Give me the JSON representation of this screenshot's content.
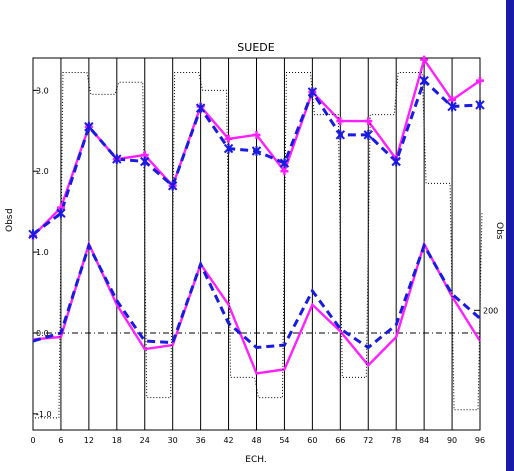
{
  "chart_data": {
    "type": "line",
    "title": "SUEDE",
    "xlabel": "ECH.",
    "ylabel_left_top": "Obs",
    "ylabel_left_prefix": "d",
    "ylabel_right": "Obs",
    "x": [
      0,
      6,
      12,
      18,
      24,
      30,
      36,
      42,
      48,
      54,
      60,
      66,
      72,
      78,
      84,
      90,
      96
    ],
    "xlim": [
      0,
      96
    ],
    "ylim": [
      -1.2,
      3.4
    ],
    "x_ticks": [
      "0",
      "6",
      "12",
      "18",
      "24",
      "30",
      "36",
      "42",
      "48",
      "54",
      "60",
      "66",
      "72",
      "78",
      "84",
      "90",
      "96"
    ],
    "y_ticks": [
      {
        "value": -1.0,
        "label": "-1.0"
      },
      {
        "value": 0.0,
        "label": "0.0"
      },
      {
        "value": 1.0,
        "label": "1.0"
      },
      {
        "value": 2.0,
        "label": "2.0"
      },
      {
        "value": 3.0,
        "label": "3.0"
      }
    ],
    "right_ticks": [
      {
        "value": 0.28,
        "label": "200"
      }
    ],
    "series": [
      {
        "style": "magenta-solid",
        "color": "#ff20ff",
        "values": [
          1.2,
          1.55,
          2.55,
          2.15,
          2.2,
          1.82,
          2.8,
          2.4,
          2.45,
          2.0,
          2.98,
          2.62,
          2.62,
          2.15,
          3.38,
          2.88,
          3.12
        ]
      },
      {
        "style": "blue-dashed-stars",
        "color": "#1a1ae0",
        "values": [
          1.22,
          1.48,
          2.55,
          2.15,
          2.12,
          1.82,
          2.78,
          2.28,
          2.25,
          2.1,
          2.98,
          2.45,
          2.45,
          2.12,
          3.12,
          2.8,
          2.82
        ]
      },
      {
        "style": "magenta-solid-lower",
        "color": "#ff20ff",
        "values": [
          -0.08,
          -0.05,
          1.1,
          0.35,
          -0.2,
          -0.15,
          0.85,
          0.35,
          -0.5,
          -0.45,
          0.35,
          0.02,
          -0.4,
          -0.05,
          1.1,
          0.45,
          -0.1
        ]
      },
      {
        "style": "blue-dashed-lower",
        "color": "#1a1ae0",
        "values": [
          -0.1,
          0.0,
          1.08,
          0.4,
          -0.1,
          -0.12,
          0.85,
          0.12,
          -0.18,
          -0.15,
          0.52,
          0.05,
          -0.18,
          0.1,
          1.08,
          0.48,
          0.18
        ]
      },
      {
        "style": "black-dotted-step",
        "color": "#000000",
        "values": [
          -1.05,
          3.22,
          2.95,
          3.1,
          -0.8,
          3.22,
          3.0,
          -0.55,
          -0.8,
          3.22,
          2.7,
          -0.55,
          2.7,
          3.22,
          1.85,
          -0.95,
          1.5
        ]
      }
    ],
    "reference_line": {
      "value": 0.0,
      "style": "dash-dot"
    },
    "grid": "vertical",
    "axis_color": "#000000"
  }
}
